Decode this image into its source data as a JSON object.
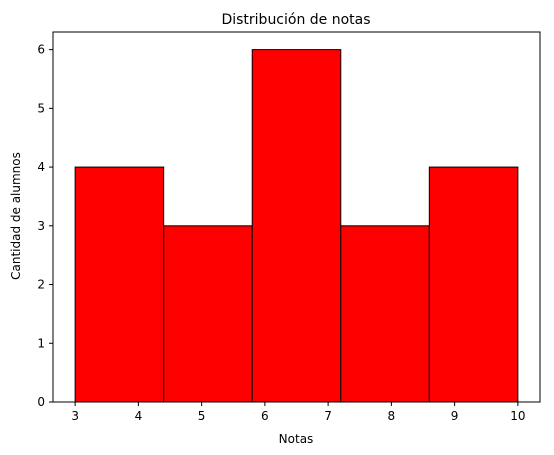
{
  "chart_data": {
    "type": "bar",
    "subtype": "histogram",
    "title": "Distribución de notas",
    "xlabel": "Notas",
    "ylabel": "Cantidad de alumnos",
    "bins": [
      {
        "start": 3.0,
        "end": 4.4,
        "count": 4
      },
      {
        "start": 4.4,
        "end": 5.8,
        "count": 3
      },
      {
        "start": 5.8,
        "end": 7.2,
        "count": 6
      },
      {
        "start": 7.2,
        "end": 8.6,
        "count": 3
      },
      {
        "start": 8.6,
        "end": 10.0,
        "count": 4
      }
    ],
    "xlim": [
      2.65,
      10.35
    ],
    "ylim": [
      0,
      6.3
    ],
    "xticks": [
      3,
      4,
      5,
      6,
      7,
      8,
      9,
      10
    ],
    "yticks": [
      0,
      1,
      2,
      3,
      4,
      5,
      6
    ],
    "bar_color": "#ff0000",
    "edge_color": "#000000",
    "grid": false,
    "legend": "none"
  }
}
